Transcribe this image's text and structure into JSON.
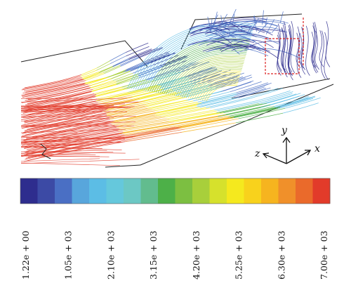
{
  "axes": {
    "y_label": "y",
    "z_label": "z",
    "x_label": "x"
  },
  "colorbar": {
    "colors": [
      "#2e2d8e",
      "#3c4aa5",
      "#4a6fc4",
      "#58a6dc",
      "#5cbde5",
      "#65c8dc",
      "#6cc8c4",
      "#62bc8e",
      "#4db048",
      "#7cbf41",
      "#a8cf3b",
      "#d6e12c",
      "#f5e91e",
      "#f8d21c",
      "#f6b41f",
      "#f0902a",
      "#ea6a2b",
      "#e23b2a"
    ],
    "tick_labels": [
      "1.22e + 00",
      "1.05e + 03",
      "2.10e + 03",
      "3.15e + 03",
      "4.20e + 03",
      "5.25e + 03",
      "6.30e + 03",
      "7.00e + 03"
    ]
  },
  "streamline_colors": [
    "#e23b2a",
    "#ea6a2b",
    "#f6b41f",
    "#f5e91e",
    "#a8cf3b",
    "#4db048",
    "#5cbde5",
    "#4a6fc4",
    "#2e2d8e"
  ]
}
